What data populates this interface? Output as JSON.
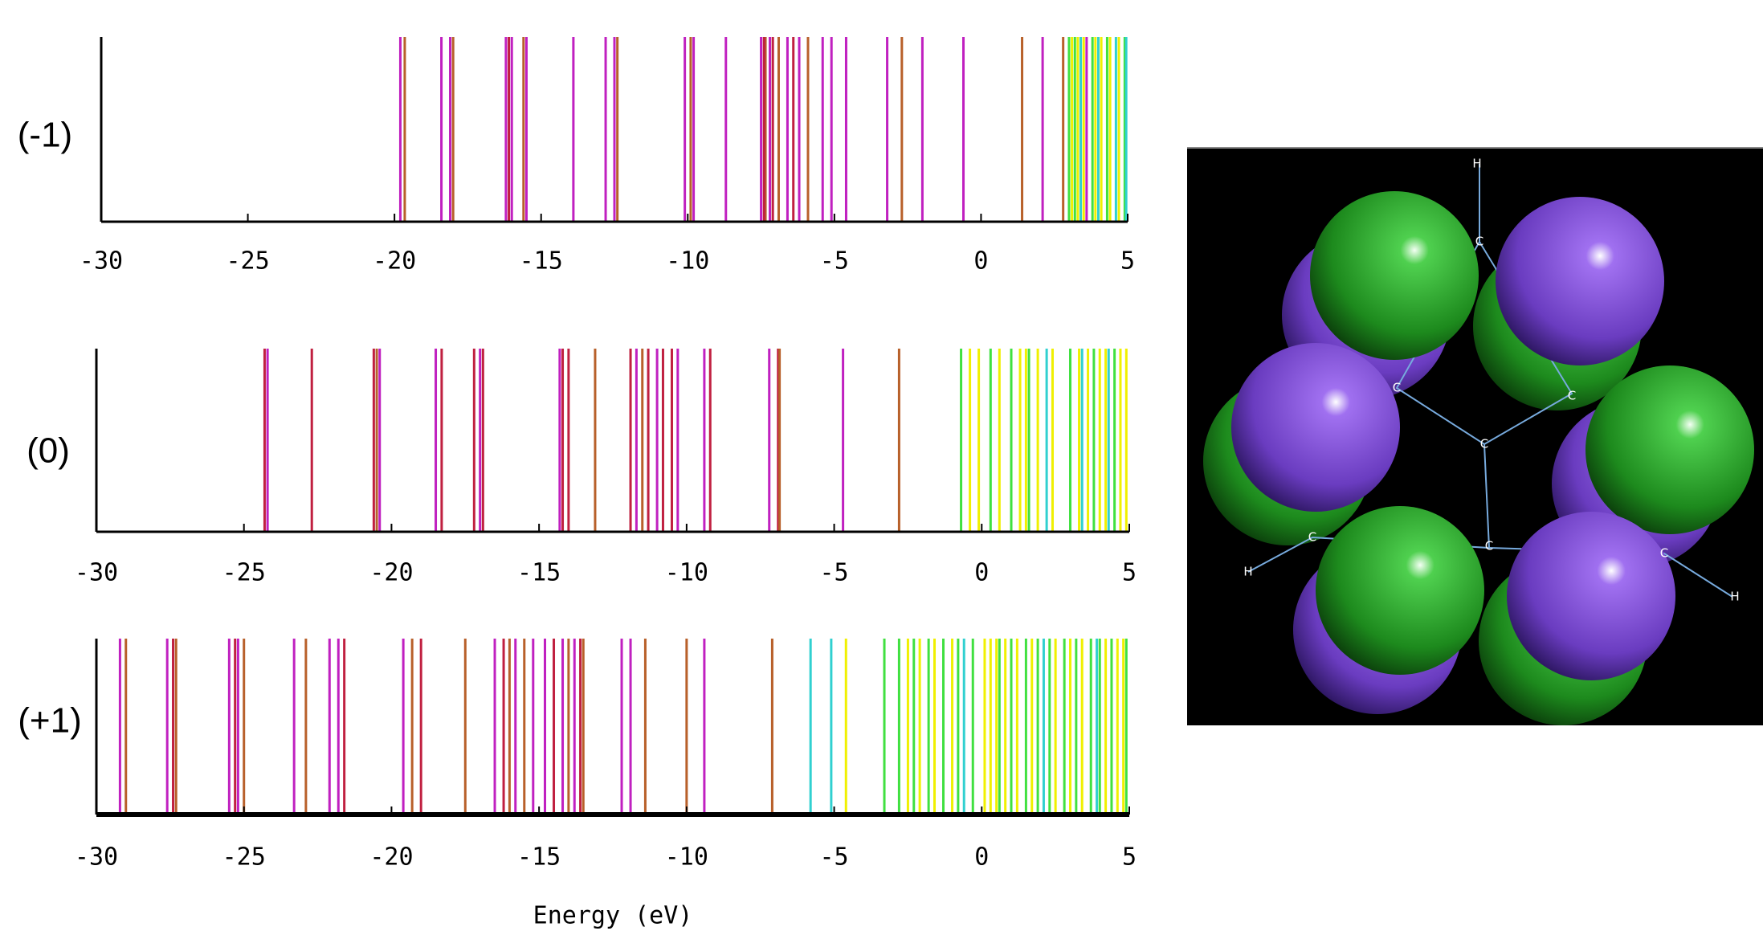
{
  "chart_data": [
    {
      "type": "spectrum",
      "label": "(-1)",
      "xlim": [
        -30,
        5
      ],
      "xticks": [
        -30,
        -25,
        -20,
        -15,
        -10,
        -5,
        0,
        5
      ],
      "series": [
        {
          "color": "#c020c0",
          "x": [
            -19.8,
            -18.4,
            -18.1,
            -16.2,
            -16.0,
            -15.5,
            -13.9,
            -12.8,
            -12.5,
            -10.1,
            -9.8,
            -8.7,
            -7.5,
            -7.2,
            -6.6,
            -6.2,
            -5.4,
            -5.1,
            -4.6,
            -3.2,
            -2.0,
            -0.6,
            2.1,
            3.6
          ]
        },
        {
          "color": "#b8602a",
          "x": [
            -19.65,
            -18.0,
            -15.6,
            -12.4,
            -9.9,
            -7.35,
            -6.9,
            -5.9,
            -2.7,
            1.4,
            2.8
          ]
        },
        {
          "color": "#c02040",
          "x": [
            -16.1,
            -7.4,
            -7.1,
            -6.4
          ]
        },
        {
          "color": "#f0f000",
          "x": [
            3.1,
            3.3,
            3.5,
            3.9,
            4.1,
            4.4,
            4.7
          ]
        },
        {
          "color": "#40e040",
          "x": [
            3.0,
            3.2,
            3.8,
            4.3,
            4.9
          ]
        },
        {
          "color": "#30d0d0",
          "x": [
            3.4,
            4.0,
            4.6,
            4.95
          ]
        }
      ]
    },
    {
      "type": "spectrum",
      "label": "(0)",
      "xlim": [
        -30,
        5
      ],
      "xticks": [
        -30,
        -25,
        -20,
        -15,
        -10,
        -5,
        0,
        5
      ],
      "series": [
        {
          "color": "#c02040",
          "x": [
            -24.3,
            -22.7,
            -20.6,
            -18.3,
            -17.2,
            -16.9,
            -14.2,
            -14.0,
            -11.9,
            -11.3,
            -10.8,
            -10.5,
            -9.2,
            -6.9
          ]
        },
        {
          "color": "#c020c0",
          "x": [
            -24.2,
            -20.4,
            -18.5,
            -17.0,
            -14.3,
            -11.7,
            -11.0,
            -10.3,
            -9.4,
            -7.2,
            -4.7
          ]
        },
        {
          "color": "#b8602a",
          "x": [
            -20.5,
            -13.1,
            -11.5,
            -6.85,
            -2.8
          ]
        },
        {
          "color": "#40e040",
          "x": [
            -0.7,
            0.3,
            1.0,
            1.6,
            3.0,
            3.8,
            4.5
          ]
        },
        {
          "color": "#f0f000",
          "x": [
            -0.4,
            -0.1,
            0.6,
            1.3,
            1.5,
            1.9,
            2.4,
            3.3,
            3.6,
            4.0,
            4.2,
            4.7,
            4.9
          ]
        },
        {
          "color": "#30d0d0",
          "x": [
            2.2,
            3.4,
            4.3
          ]
        }
      ]
    },
    {
      "type": "spectrum",
      "label": "(+1)",
      "xlabel": "Energy (eV)",
      "xlim": [
        -30,
        5
      ],
      "xticks": [
        -30,
        -25,
        -20,
        -15,
        -10,
        -5,
        0,
        5
      ],
      "series": [
        {
          "color": "#c020c0",
          "x": [
            -29.2,
            -27.6,
            -25.5,
            -25.2,
            -23.3,
            -22.1,
            -21.8,
            -19.6,
            -16.5,
            -15.8,
            -15.2,
            -14.8,
            -14.2,
            -13.8,
            -12.2,
            -11.9,
            -9.4
          ]
        },
        {
          "color": "#b8602a",
          "x": [
            -29.0,
            -27.3,
            -25.0,
            -22.9,
            -19.3,
            -17.5,
            -16.0,
            -15.5,
            -14.0,
            -13.5,
            -11.4,
            -10.0,
            -7.1
          ]
        },
        {
          "color": "#c02040",
          "x": [
            -27.4,
            -25.3,
            -21.6,
            -19.0,
            -16.2,
            -14.5,
            -13.6
          ]
        },
        {
          "color": "#30d0d0",
          "x": [
            -5.8,
            -5.1,
            -0.6,
            2.1,
            3.9
          ]
        },
        {
          "color": "#f0f000",
          "x": [
            -4.6,
            -2.5,
            -2.1,
            -1.6,
            -1.0,
            0.1,
            0.3,
            0.5,
            0.8,
            1.2,
            1.7,
            2.5,
            3.0,
            3.4,
            4.2,
            4.6,
            4.8
          ]
        },
        {
          "color": "#40e040",
          "x": [
            -3.3,
            -2.8,
            -2.3,
            -1.8,
            -1.3,
            -0.8,
            -0.3,
            0.6,
            1.0,
            1.5,
            1.9,
            2.3,
            2.8,
            3.2,
            3.7,
            4.0,
            4.4,
            4.9
          ]
        }
      ]
    }
  ],
  "molecule": {
    "atom_labels": [
      "H",
      "C",
      "C",
      "C",
      "C",
      "C",
      "C",
      "C",
      "H",
      "H"
    ]
  }
}
